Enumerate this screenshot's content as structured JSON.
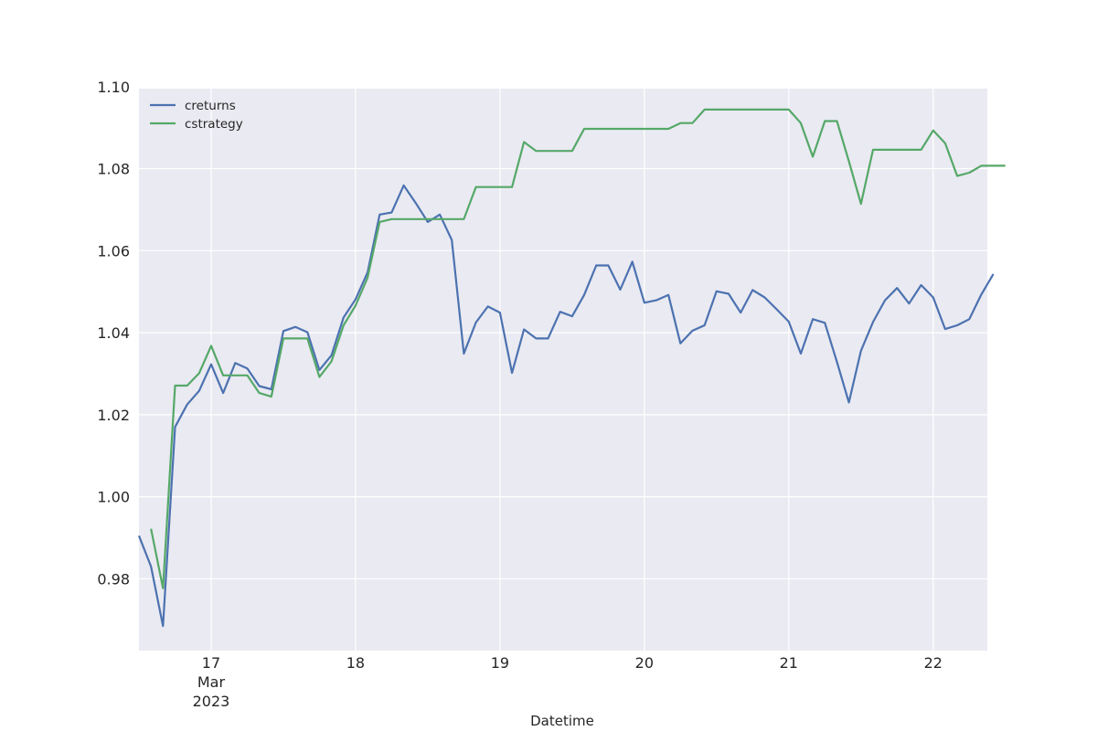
{
  "chart_data": {
    "type": "line",
    "title": "",
    "xlabel": "Datetime",
    "ylabel": "",
    "grid": true,
    "legend_position": "top-left",
    "x_unit": "hour",
    "x_range": [
      "2023-03-16 12:00",
      "2023-03-22 09:00"
    ],
    "ylim": [
      0.9625,
      1.0995
    ],
    "x_ticks": [
      {
        "value": "2023-03-17",
        "label": "17",
        "sublabel": "Mar",
        "sublabel2": "2023"
      },
      {
        "value": "2023-03-18",
        "label": "18"
      },
      {
        "value": "2023-03-19",
        "label": "19"
      },
      {
        "value": "2023-03-20",
        "label": "20"
      },
      {
        "value": "2023-03-21",
        "label": "21"
      },
      {
        "value": "2023-03-22",
        "label": "22"
      }
    ],
    "y_ticks": [
      {
        "value": 0.98,
        "label": "0.98"
      },
      {
        "value": 1.0,
        "label": "1.00"
      },
      {
        "value": 1.02,
        "label": "1.02"
      },
      {
        "value": 1.04,
        "label": "1.04"
      },
      {
        "value": 1.06,
        "label": "1.06"
      },
      {
        "value": 1.08,
        "label": "1.08"
      },
      {
        "value": 1.1,
        "label": "1.10"
      }
    ],
    "series": [
      {
        "name": "creturns",
        "color": "#4c72b0",
        "start": "2023-03-16 12:00",
        "step_hours": 2,
        "values": [
          0.9905,
          0.983,
          0.9685,
          1.017,
          1.0225,
          1.0258,
          1.0323,
          1.0253,
          1.0326,
          1.0313,
          1.027,
          1.0262,
          1.0404,
          1.0414,
          1.0401,
          1.0309,
          1.0345,
          1.0437,
          1.0481,
          1.0547,
          1.0688,
          1.0693,
          1.0759,
          1.0716,
          1.067,
          1.0688,
          1.0626,
          1.0349,
          1.0425,
          1.0464,
          1.0449,
          1.0302,
          1.0408,
          1.0386,
          1.0386,
          1.0451,
          1.044,
          1.0492,
          1.0564,
          1.0564,
          1.0505,
          1.0573,
          1.0473,
          1.0479,
          1.0492,
          1.0374,
          1.0405,
          1.0418,
          1.0501,
          1.0495,
          1.0449,
          1.0504,
          1.0486,
          1.0457,
          1.0427,
          1.0349,
          1.0433,
          1.0424,
          1.0329,
          1.023,
          1.0356,
          1.0426,
          1.0479,
          1.0509,
          1.0471,
          1.0516,
          1.0486,
          1.0409,
          1.0418,
          1.0433,
          1.0493,
          1.0543
        ]
      },
      {
        "name": "cstrategy",
        "color": "#55a868",
        "start": "2023-03-16 14:00",
        "step_hours": 2,
        "values": [
          0.9922,
          0.9777,
          1.0271,
          1.0271,
          1.0301,
          1.0368,
          1.0296,
          1.0296,
          1.0296,
          1.0253,
          1.0244,
          1.0386,
          1.0386,
          1.0386,
          1.0292,
          1.033,
          1.0418,
          1.0466,
          1.0534,
          1.067,
          1.0677,
          1.0677,
          1.0677,
          1.0677,
          1.0677,
          1.0677,
          1.0677,
          1.0755,
          1.0755,
          1.0755,
          1.0755,
          1.0865,
          1.0843,
          1.0843,
          1.0843,
          1.0843,
          1.0897,
          1.0897,
          1.0897,
          1.0897,
          1.0897,
          1.0897,
          1.0897,
          1.0897,
          1.0911,
          1.0911,
          1.0944,
          1.0944,
          1.0944,
          1.0944,
          1.0944,
          1.0944,
          1.0944,
          1.0944,
          1.0911,
          1.0829,
          1.0916,
          1.0916,
          1.0818,
          1.0714,
          1.0846,
          1.0846,
          1.0846,
          1.0846,
          1.0846,
          1.0893,
          1.0862,
          1.0782,
          1.079,
          1.0807,
          1.0807,
          1.0807
        ]
      }
    ]
  }
}
